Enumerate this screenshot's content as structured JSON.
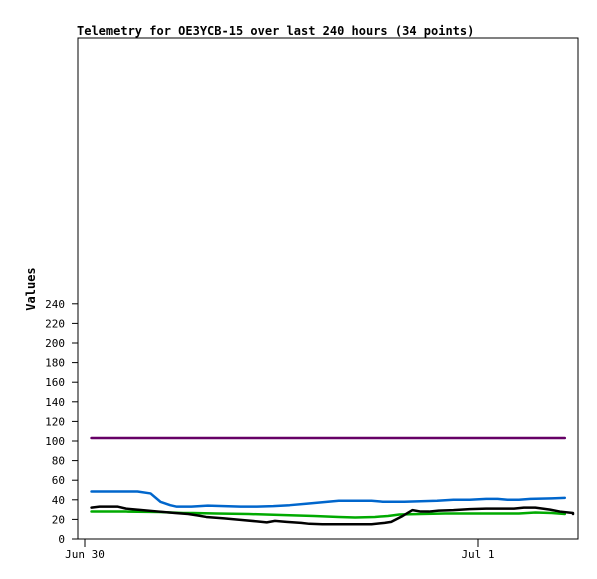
{
  "chart_data": {
    "type": "line",
    "title": "Telemetry for OE3YCB-15 over last 240 hours (34 points)",
    "ylabel": "Values",
    "xlabel": "",
    "ylim": [
      0,
      255
    ],
    "y_ticks": [
      0,
      20,
      40,
      60,
      80,
      100,
      120,
      140,
      160,
      180,
      200,
      220,
      240
    ],
    "x_ticks": [
      {
        "label": "Jun 30",
        "value": 0
      },
      {
        "label": "Jul 1",
        "value": 24
      }
    ],
    "xlim": [
      0,
      29.57
    ],
    "grid": false,
    "legend": "none",
    "series": [
      {
        "color": "#660066",
        "points": [
          [
            0.4,
            103
          ],
          [
            29.3,
            103
          ]
        ]
      },
      {
        "color": "#0066cc",
        "points": [
          [
            0.4,
            48.5
          ],
          [
            1.5,
            48.5
          ],
          [
            3.2,
            48.5
          ],
          [
            4.0,
            46.5
          ],
          [
            4.6,
            38
          ],
          [
            5.2,
            34.5
          ],
          [
            5.6,
            33
          ],
          [
            6.5,
            33
          ],
          [
            7.5,
            34
          ],
          [
            8.5,
            33.5
          ],
          [
            9.5,
            33
          ],
          [
            10.5,
            33
          ],
          [
            11.5,
            33.5
          ],
          [
            12.5,
            34.5
          ],
          [
            13.5,
            36
          ],
          [
            14.5,
            37.5
          ],
          [
            15.5,
            39
          ],
          [
            16.5,
            39
          ],
          [
            17.5,
            39
          ],
          [
            18.2,
            38
          ],
          [
            19.5,
            38
          ],
          [
            20.5,
            38.5
          ],
          [
            21.5,
            39
          ],
          [
            22.5,
            40
          ],
          [
            23.5,
            40
          ],
          [
            24.5,
            41
          ],
          [
            25.2,
            41
          ],
          [
            25.8,
            40
          ],
          [
            26.5,
            40
          ],
          [
            27.2,
            41
          ],
          [
            28.5,
            41.5
          ],
          [
            29.3,
            42
          ]
        ]
      },
      {
        "color": "#00aa00",
        "points": [
          [
            0.4,
            28
          ],
          [
            2.5,
            28
          ],
          [
            4.5,
            27.5
          ],
          [
            6.0,
            26.5
          ],
          [
            6.6,
            26.5
          ],
          [
            8.0,
            26
          ],
          [
            10.0,
            25.5
          ],
          [
            12.0,
            24.5
          ],
          [
            14.0,
            23.5
          ],
          [
            15.5,
            22.5
          ],
          [
            16.5,
            22
          ],
          [
            17.7,
            22.5
          ],
          [
            18.5,
            23.5
          ],
          [
            19.2,
            25
          ],
          [
            20.5,
            25.5
          ],
          [
            22.0,
            26
          ],
          [
            24.0,
            26
          ],
          [
            26.5,
            26
          ],
          [
            27.5,
            27
          ],
          [
            28.5,
            26.5
          ],
          [
            29.3,
            25.5
          ]
        ]
      },
      {
        "color": "#000000",
        "points": [
          [
            0.4,
            32
          ],
          [
            0.9,
            33
          ],
          [
            2.0,
            33
          ],
          [
            2.5,
            31
          ],
          [
            3.5,
            29.5
          ],
          [
            4.5,
            28
          ],
          [
            5.5,
            26.5
          ],
          [
            6.3,
            25.5
          ],
          [
            6.9,
            24
          ],
          [
            7.4,
            22.5
          ],
          [
            8.5,
            21
          ],
          [
            9.5,
            19.5
          ],
          [
            10.5,
            18
          ],
          [
            11.1,
            17
          ],
          [
            11.6,
            18.5
          ],
          [
            12.3,
            17.5
          ],
          [
            13.2,
            16.5
          ],
          [
            13.7,
            15.5
          ],
          [
            14.5,
            15
          ],
          [
            16.5,
            15
          ],
          [
            17.5,
            15
          ],
          [
            18.3,
            16.5
          ],
          [
            18.7,
            17.5
          ],
          [
            19.4,
            23.5
          ],
          [
            20.0,
            29.5
          ],
          [
            20.5,
            28
          ],
          [
            21.0,
            28
          ],
          [
            21.6,
            29
          ],
          [
            22.5,
            29.5
          ],
          [
            23.5,
            30.5
          ],
          [
            24.5,
            31
          ],
          [
            25.5,
            31
          ],
          [
            26.2,
            31
          ],
          [
            26.8,
            32
          ],
          [
            27.5,
            32
          ],
          [
            28.4,
            30
          ],
          [
            29.0,
            28
          ],
          [
            30.0,
            26.5
          ],
          [
            31.5,
            25.5
          ]
        ]
      }
    ]
  }
}
